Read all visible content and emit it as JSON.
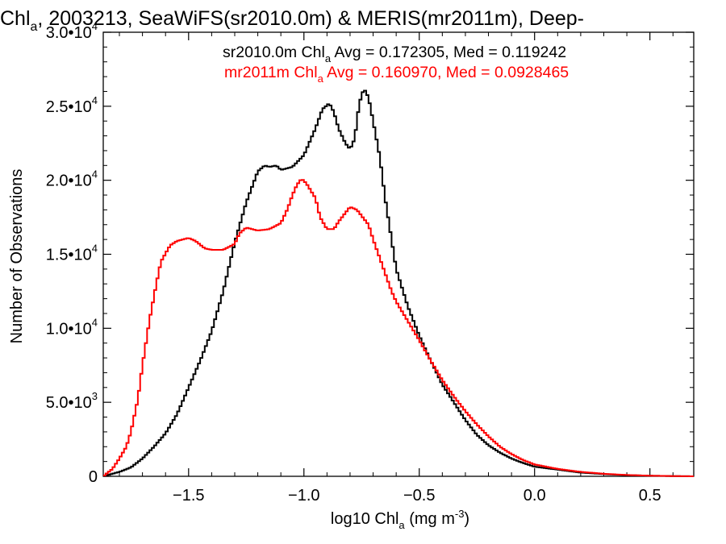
{
  "chart_data": {
    "type": "line",
    "title": {
      "pre": "Chl",
      "sub": "a",
      "post": ", 2003213, SeaWiFS(sr2010.0m) & MERIS(mr2011m), Deep-"
    },
    "xlabel": {
      "pre": "log10 Chl",
      "sub": "a",
      "post": " (mg m",
      "sup": "-3",
      "end": ")"
    },
    "ylabel": "Number of Observations",
    "xlim": [
      -1.87,
      0.69
    ],
    "ylim": [
      0,
      30000
    ],
    "xticks": [
      {
        "value": -1.5,
        "label": "−1.5"
      },
      {
        "value": -1.0,
        "label": "−1.0"
      },
      {
        "value": -0.5,
        "label": "−0.5"
      },
      {
        "value": 0.0,
        "label": "0.0"
      },
      {
        "value": 0.5,
        "label": "0.5"
      }
    ],
    "yticks": [
      {
        "value": 0,
        "mant": "0",
        "exp": ""
      },
      {
        "value": 5000,
        "mant": "5.0•10",
        "exp": "3"
      },
      {
        "value": 10000,
        "mant": "1.0•10",
        "exp": "4"
      },
      {
        "value": 15000,
        "mant": "1.5•10",
        "exp": "4"
      },
      {
        "value": 20000,
        "mant": "2.0•10",
        "exp": "4"
      },
      {
        "value": 25000,
        "mant": "2.5•10",
        "exp": "4"
      },
      {
        "value": 30000,
        "mant": "3.0•10",
        "exp": "4"
      }
    ],
    "grid": false,
    "series": [
      {
        "name": "sr2010.0m",
        "color": "#000000",
        "legend": {
          "pre": "sr2010.0m Chl",
          "sub": "a",
          "post": " Avg = 0.172305, Med = 0.119242"
        },
        "points": [
          [
            -1.87,
            0
          ],
          [
            -1.8,
            300
          ],
          [
            -1.75,
            600
          ],
          [
            -1.7,
            1200
          ],
          [
            -1.65,
            2000
          ],
          [
            -1.6,
            2900
          ],
          [
            -1.55,
            4200
          ],
          [
            -1.5,
            6000
          ],
          [
            -1.45,
            7800
          ],
          [
            -1.4,
            9800
          ],
          [
            -1.35,
            12500
          ],
          [
            -1.3,
            15800
          ],
          [
            -1.25,
            18500
          ],
          [
            -1.2,
            20600
          ],
          [
            -1.17,
            21000
          ],
          [
            -1.15,
            20900
          ],
          [
            -1.12,
            21000
          ],
          [
            -1.1,
            20700
          ],
          [
            -1.05,
            20900
          ],
          [
            -1.0,
            21700
          ],
          [
            -0.95,
            23500
          ],
          [
            -0.92,
            24800
          ],
          [
            -0.89,
            25200
          ],
          [
            -0.87,
            24600
          ],
          [
            -0.85,
            23500
          ],
          [
            -0.82,
            22500
          ],
          [
            -0.8,
            22100
          ],
          [
            -0.78,
            22800
          ],
          [
            -0.76,
            25200
          ],
          [
            -0.74,
            26200
          ],
          [
            -0.72,
            25600
          ],
          [
            -0.7,
            24000
          ],
          [
            -0.67,
            21500
          ],
          [
            -0.65,
            19000
          ],
          [
            -0.62,
            16000
          ],
          [
            -0.6,
            14000
          ],
          [
            -0.55,
            11500
          ],
          [
            -0.5,
            9500
          ],
          [
            -0.45,
            7800
          ],
          [
            -0.4,
            6200
          ],
          [
            -0.35,
            5000
          ],
          [
            -0.3,
            3800
          ],
          [
            -0.25,
            2800
          ],
          [
            -0.2,
            2100
          ],
          [
            -0.15,
            1600
          ],
          [
            -0.1,
            1200
          ],
          [
            -0.05,
            900
          ],
          [
            0.0,
            650
          ],
          [
            0.1,
            450
          ],
          [
            0.2,
            250
          ],
          [
            0.3,
            150
          ],
          [
            0.4,
            80
          ],
          [
            0.5,
            40
          ],
          [
            0.6,
            15
          ],
          [
            0.69,
            0
          ]
        ]
      },
      {
        "name": "mr2011m",
        "color": "#ff0000",
        "legend": {
          "pre": "mr2011m Chl",
          "sub": "a",
          "post": " Avg = 0.160970, Med = 0.0928465"
        },
        "points": [
          [
            -1.87,
            0
          ],
          [
            -1.83,
            500
          ],
          [
            -1.8,
            1200
          ],
          [
            -1.77,
            2000
          ],
          [
            -1.75,
            3000
          ],
          [
            -1.72,
            5200
          ],
          [
            -1.7,
            7500
          ],
          [
            -1.67,
            10500
          ],
          [
            -1.64,
            13000
          ],
          [
            -1.62,
            14500
          ],
          [
            -1.58,
            15600
          ],
          [
            -1.55,
            15900
          ],
          [
            -1.5,
            16100
          ],
          [
            -1.47,
            15900
          ],
          [
            -1.43,
            15400
          ],
          [
            -1.4,
            15300
          ],
          [
            -1.35,
            15300
          ],
          [
            -1.3,
            15700
          ],
          [
            -1.28,
            16400
          ],
          [
            -1.25,
            16800
          ],
          [
            -1.2,
            16600
          ],
          [
            -1.15,
            16700
          ],
          [
            -1.1,
            17100
          ],
          [
            -1.07,
            18100
          ],
          [
            -1.05,
            19000
          ],
          [
            -1.03,
            19700
          ],
          [
            -1.01,
            20100
          ],
          [
            -0.99,
            19800
          ],
          [
            -0.95,
            18800
          ],
          [
            -0.93,
            17500
          ],
          [
            -0.9,
            16700
          ],
          [
            -0.87,
            16700
          ],
          [
            -0.85,
            17200
          ],
          [
            -0.82,
            17800
          ],
          [
            -0.8,
            18200
          ],
          [
            -0.77,
            18000
          ],
          [
            -0.75,
            17600
          ],
          [
            -0.72,
            17000
          ],
          [
            -0.7,
            16000
          ],
          [
            -0.67,
            14700
          ],
          [
            -0.65,
            13800
          ],
          [
            -0.62,
            12500
          ],
          [
            -0.6,
            11800
          ],
          [
            -0.55,
            10500
          ],
          [
            -0.5,
            9200
          ],
          [
            -0.45,
            7800
          ],
          [
            -0.4,
            6500
          ],
          [
            -0.35,
            5400
          ],
          [
            -0.3,
            4400
          ],
          [
            -0.25,
            3500
          ],
          [
            -0.2,
            2700
          ],
          [
            -0.15,
            2000
          ],
          [
            -0.1,
            1500
          ],
          [
            -0.05,
            1100
          ],
          [
            0.0,
            800
          ],
          [
            0.1,
            500
          ],
          [
            0.2,
            300
          ],
          [
            0.3,
            170
          ],
          [
            0.4,
            90
          ],
          [
            0.5,
            40
          ],
          [
            0.6,
            15
          ],
          [
            0.69,
            0
          ]
        ]
      }
    ]
  }
}
